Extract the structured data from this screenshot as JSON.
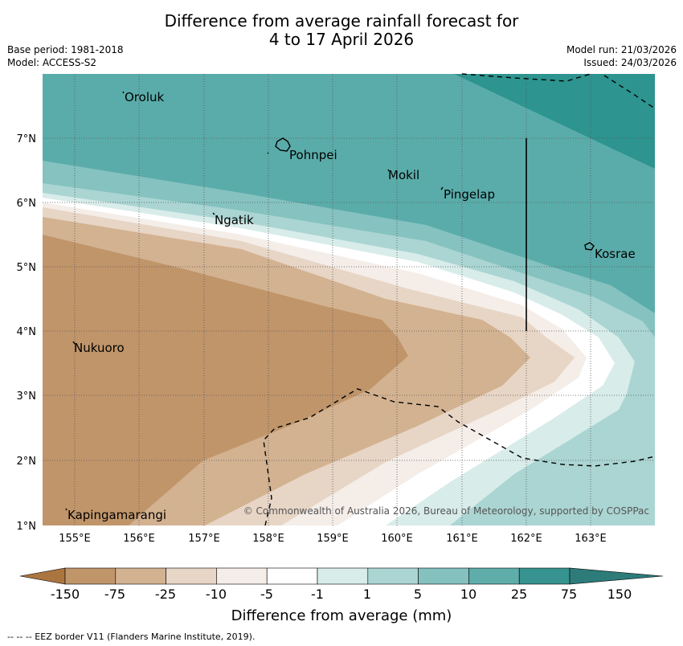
{
  "title_line1": "Difference from average rainfall forecast for",
  "title_line2": "4 to 17 April 2026",
  "base_period": "Base period: 1981-2018",
  "model": "Model: ACCESS-S2",
  "model_run": "Model run: 21/03/2026",
  "issued": "Issued: 24/03/2026",
  "places": {
    "oroluk": "Oroluk",
    "pohnpei": "Pohnpei",
    "mokil": "Mokil",
    "pingelap": "Pingelap",
    "ngatik": "Ngatik",
    "kosrae": "Kosrae",
    "nukuoro": "Nukuoro",
    "kapingamarangi": "Kapingamarangi"
  },
  "axes": {
    "lon_labels": [
      "155°E",
      "156°E",
      "157°E",
      "158°E",
      "159°E",
      "160°E",
      "161°E",
      "162°E",
      "163°E"
    ],
    "lat_labels": [
      "7°N",
      "6°N",
      "5°N",
      "4°N",
      "3°N",
      "2°N",
      "1°N"
    ]
  },
  "copyright": "© Commonwealth of Australia 2026, Bureau of Meteorology, supported by COSPPac",
  "colorbar": {
    "labels": [
      "-150",
      "-75",
      "-25",
      "-10",
      "-5",
      "-1",
      "1",
      "5",
      "10",
      "25",
      "75",
      "150"
    ],
    "colors": [
      "#ab7540",
      "#c0956a",
      "#d3b291",
      "#e7d5c5",
      "#f4ede8",
      "#ffffff",
      "#d8ecea",
      "#aad5d3",
      "#84c1bf",
      "#5fadaa",
      "#36938f",
      "#2d7c7a"
    ],
    "title": "Difference from average (mm)"
  },
  "footer": "--  --  -- EEZ border V11 (Flanders Marine Institute, 2019)."
}
